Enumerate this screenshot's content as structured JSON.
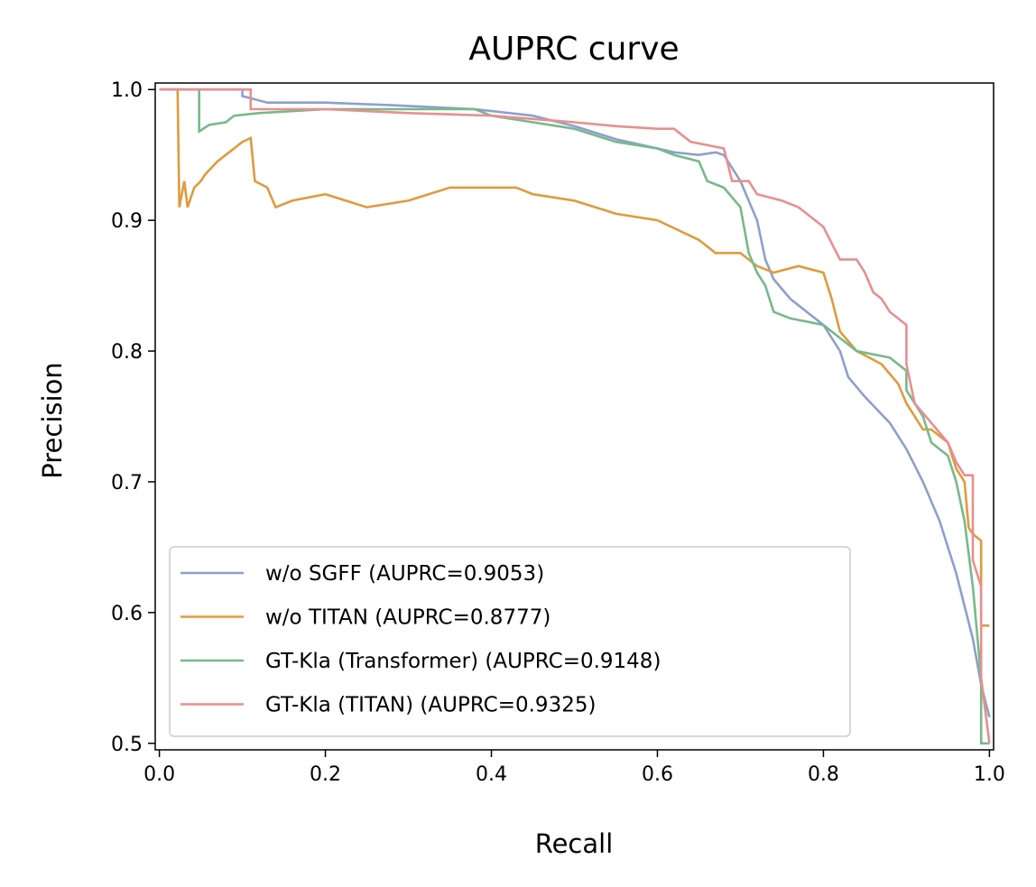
{
  "chart_data": {
    "type": "line",
    "title": "AUPRC curve",
    "xlabel": "Recall",
    "ylabel": "Precision",
    "xlim": [
      -0.005,
      1.005
    ],
    "ylim": [
      0.495,
      1.005
    ],
    "xticks": [
      "0.0",
      "0.2",
      "0.4",
      "0.6",
      "0.8",
      "1.0"
    ],
    "yticks": [
      "0.5",
      "0.6",
      "0.7",
      "0.8",
      "0.9",
      "1.0"
    ],
    "grid": false,
    "legend_position": "lower-left",
    "series": [
      {
        "name": "w/o SGFF (AUPRC=0.9053)",
        "color": "#8DA0CB",
        "points": [
          [
            0.0,
            1.0
          ],
          [
            0.1,
            1.0
          ],
          [
            0.1,
            0.995
          ],
          [
            0.13,
            0.99
          ],
          [
            0.2,
            0.99
          ],
          [
            0.28,
            0.988
          ],
          [
            0.38,
            0.985
          ],
          [
            0.45,
            0.98
          ],
          [
            0.5,
            0.972
          ],
          [
            0.55,
            0.962
          ],
          [
            0.6,
            0.955
          ],
          [
            0.62,
            0.952
          ],
          [
            0.65,
            0.95
          ],
          [
            0.67,
            0.952
          ],
          [
            0.68,
            0.95
          ],
          [
            0.7,
            0.93
          ],
          [
            0.72,
            0.9
          ],
          [
            0.73,
            0.87
          ],
          [
            0.74,
            0.855
          ],
          [
            0.76,
            0.84
          ],
          [
            0.8,
            0.82
          ],
          [
            0.82,
            0.8
          ],
          [
            0.83,
            0.78
          ],
          [
            0.85,
            0.765
          ],
          [
            0.88,
            0.745
          ],
          [
            0.9,
            0.725
          ],
          [
            0.92,
            0.7
          ],
          [
            0.94,
            0.67
          ],
          [
            0.96,
            0.63
          ],
          [
            0.98,
            0.58
          ],
          [
            0.99,
            0.545
          ],
          [
            1.0,
            0.52
          ]
        ]
      },
      {
        "name": "w/o TITAN (AUPRC=0.8777)",
        "color": "#E09A3E",
        "points": [
          [
            0.0,
            1.0
          ],
          [
            0.022,
            1.0
          ],
          [
            0.024,
            0.91
          ],
          [
            0.03,
            0.93
          ],
          [
            0.034,
            0.91
          ],
          [
            0.042,
            0.925
          ],
          [
            0.05,
            0.93
          ],
          [
            0.055,
            0.935
          ],
          [
            0.07,
            0.945
          ],
          [
            0.1,
            0.96
          ],
          [
            0.11,
            0.963
          ],
          [
            0.115,
            0.93
          ],
          [
            0.13,
            0.925
          ],
          [
            0.14,
            0.91
          ],
          [
            0.16,
            0.915
          ],
          [
            0.2,
            0.92
          ],
          [
            0.25,
            0.91
          ],
          [
            0.3,
            0.915
          ],
          [
            0.35,
            0.925
          ],
          [
            0.4,
            0.925
          ],
          [
            0.43,
            0.925
          ],
          [
            0.45,
            0.92
          ],
          [
            0.5,
            0.915
          ],
          [
            0.55,
            0.905
          ],
          [
            0.6,
            0.9
          ],
          [
            0.65,
            0.885
          ],
          [
            0.67,
            0.875
          ],
          [
            0.7,
            0.875
          ],
          [
            0.72,
            0.865
          ],
          [
            0.74,
            0.86
          ],
          [
            0.77,
            0.865
          ],
          [
            0.8,
            0.86
          ],
          [
            0.81,
            0.84
          ],
          [
            0.82,
            0.815
          ],
          [
            0.84,
            0.8
          ],
          [
            0.87,
            0.79
          ],
          [
            0.89,
            0.775
          ],
          [
            0.9,
            0.76
          ],
          [
            0.92,
            0.74
          ],
          [
            0.93,
            0.74
          ],
          [
            0.95,
            0.73
          ],
          [
            0.96,
            0.71
          ],
          [
            0.97,
            0.7
          ],
          [
            0.975,
            0.665
          ],
          [
            0.98,
            0.66
          ],
          [
            0.99,
            0.655
          ],
          [
            0.99,
            0.59
          ],
          [
            1.0,
            0.59
          ]
        ]
      },
      {
        "name": "GT-Kla (Transformer) (AUPRC=0.9148)",
        "color": "#77B98A",
        "points": [
          [
            0.0,
            1.0
          ],
          [
            0.048,
            1.0
          ],
          [
            0.048,
            0.968
          ],
          [
            0.06,
            0.973
          ],
          [
            0.08,
            0.975
          ],
          [
            0.09,
            0.98
          ],
          [
            0.12,
            0.982
          ],
          [
            0.2,
            0.985
          ],
          [
            0.3,
            0.985
          ],
          [
            0.38,
            0.985
          ],
          [
            0.4,
            0.98
          ],
          [
            0.45,
            0.975
          ],
          [
            0.5,
            0.97
          ],
          [
            0.55,
            0.96
          ],
          [
            0.6,
            0.955
          ],
          [
            0.62,
            0.95
          ],
          [
            0.65,
            0.945
          ],
          [
            0.66,
            0.93
          ],
          [
            0.68,
            0.925
          ],
          [
            0.7,
            0.91
          ],
          [
            0.71,
            0.875
          ],
          [
            0.72,
            0.86
          ],
          [
            0.73,
            0.85
          ],
          [
            0.74,
            0.83
          ],
          [
            0.76,
            0.825
          ],
          [
            0.8,
            0.82
          ],
          [
            0.82,
            0.81
          ],
          [
            0.84,
            0.8
          ],
          [
            0.88,
            0.795
          ],
          [
            0.9,
            0.785
          ],
          [
            0.9,
            0.77
          ],
          [
            0.92,
            0.75
          ],
          [
            0.93,
            0.73
          ],
          [
            0.95,
            0.72
          ],
          [
            0.96,
            0.7
          ],
          [
            0.97,
            0.67
          ],
          [
            0.98,
            0.62
          ],
          [
            0.99,
            0.55
          ],
          [
            0.99,
            0.5
          ],
          [
            1.0,
            0.5
          ]
        ]
      },
      {
        "name": "GT-Kla (TITAN) (AUPRC=0.9325)",
        "color": "#E88F8F",
        "points": [
          [
            0.0,
            1.0
          ],
          [
            0.11,
            1.0
          ],
          [
            0.11,
            0.985
          ],
          [
            0.15,
            0.985
          ],
          [
            0.2,
            0.985
          ],
          [
            0.3,
            0.982
          ],
          [
            0.4,
            0.98
          ],
          [
            0.5,
            0.975
          ],
          [
            0.55,
            0.972
          ],
          [
            0.6,
            0.97
          ],
          [
            0.62,
            0.97
          ],
          [
            0.64,
            0.96
          ],
          [
            0.68,
            0.955
          ],
          [
            0.69,
            0.93
          ],
          [
            0.71,
            0.93
          ],
          [
            0.72,
            0.92
          ],
          [
            0.75,
            0.915
          ],
          [
            0.77,
            0.91
          ],
          [
            0.79,
            0.9
          ],
          [
            0.8,
            0.895
          ],
          [
            0.82,
            0.87
          ],
          [
            0.84,
            0.87
          ],
          [
            0.85,
            0.86
          ],
          [
            0.86,
            0.845
          ],
          [
            0.87,
            0.84
          ],
          [
            0.88,
            0.83
          ],
          [
            0.9,
            0.82
          ],
          [
            0.9,
            0.79
          ],
          [
            0.91,
            0.76
          ],
          [
            0.93,
            0.745
          ],
          [
            0.95,
            0.73
          ],
          [
            0.96,
            0.715
          ],
          [
            0.97,
            0.705
          ],
          [
            0.98,
            0.705
          ],
          [
            0.98,
            0.64
          ],
          [
            0.99,
            0.62
          ],
          [
            0.99,
            0.55
          ],
          [
            1.0,
            0.5
          ]
        ]
      }
    ]
  }
}
